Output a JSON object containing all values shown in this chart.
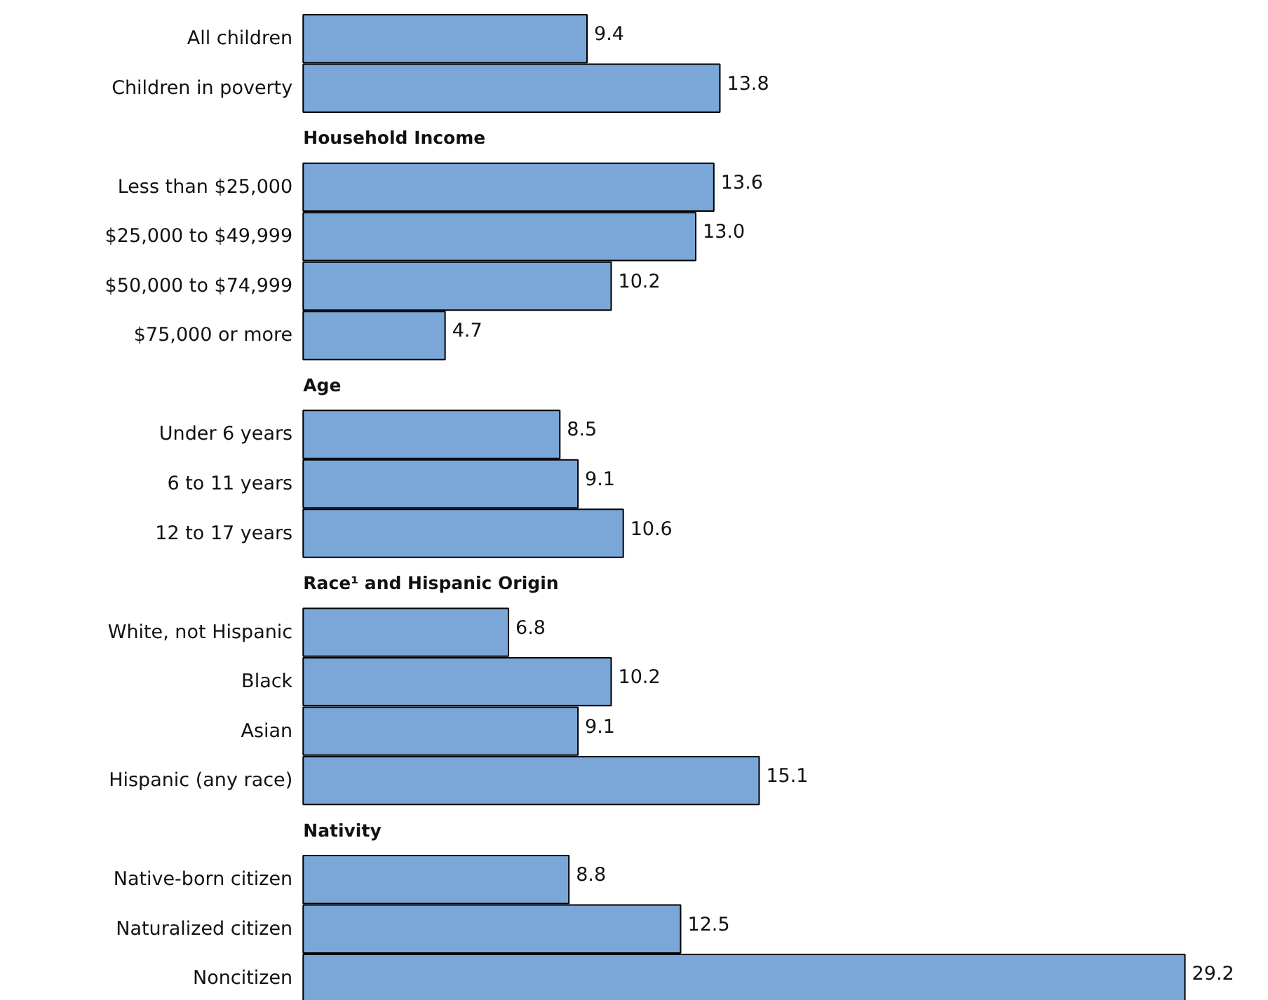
{
  "chart_data": {
    "type": "bar",
    "orientation": "horizontal",
    "categories": [
      "All children",
      "Children in poverty",
      "Household Income",
      "Less than $25,000",
      "$25,000 to $49,999",
      "$50,000 to $74,999",
      "$75,000 or more",
      "Age",
      "Under 6 years",
      "6 to 11 years",
      "12 to 17 years",
      "Race¹ and Hispanic Origin",
      "White, not Hispanic",
      "Black",
      "Asian",
      "Hispanic (any race)",
      "Nativity",
      "Native-born citizen",
      "Naturalized citizen",
      "Noncitizen"
    ],
    "series": [
      {
        "color": "#7aa7d8",
        "values": [
          9.4,
          13.8,
          null,
          13.6,
          13.0,
          10.2,
          4.7,
          null,
          8.5,
          9.1,
          10.6,
          null,
          6.8,
          10.2,
          9.1,
          15.1,
          null,
          8.8,
          12.5,
          29.2
        ],
        "value_labels": [
          "9.4",
          "13.8",
          null,
          "13.6",
          "13.0",
          "10.2",
          "4.7",
          null,
          "8.5",
          "9.1",
          "10.6",
          null,
          "6.8",
          "10.2",
          "9.1",
          "15.1",
          null,
          "8.8",
          "12.5",
          "29.2"
        ]
      }
    ]
  }
}
